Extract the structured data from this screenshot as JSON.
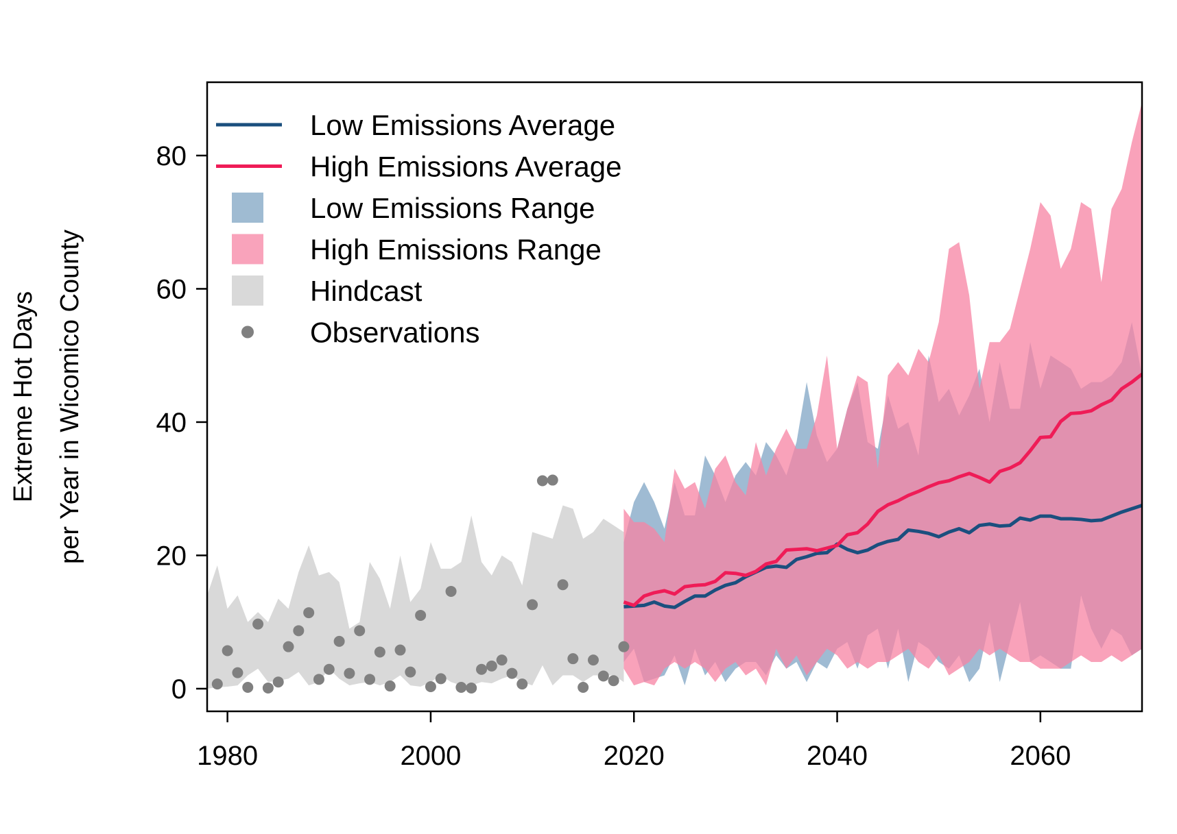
{
  "chart_data": {
    "type": "area",
    "title": "",
    "xlabel": "",
    "ylabel_lines": [
      "Extreme Hot Days",
      "per Year in Wicomico County"
    ],
    "xlim": [
      1978,
      2070
    ],
    "ylim": [
      -3.4,
      91
    ],
    "xticks": [
      1980,
      2000,
      2020,
      2040,
      2060
    ],
    "yticks": [
      0,
      20,
      40,
      60,
      80
    ],
    "grid": false,
    "legend_position": "top-left",
    "colors": {
      "low_line": "#1b4f7e",
      "high_line": "#ef1c57",
      "low_range": "#7fa4c4",
      "high_range": "#f783a3",
      "low_range_opacity": 0.75,
      "high_range_opacity": 0.75,
      "hindcast": "#d9d9d9",
      "observations": "#808080"
    },
    "legend": [
      {
        "label": "Low Emissions Average",
        "kind": "line",
        "color": "#1b4f7e"
      },
      {
        "label": "High Emissions Average",
        "kind": "line",
        "color": "#ef1c57"
      },
      {
        "label": "Low Emissions Range",
        "kind": "fill",
        "color": "#9fbbd2"
      },
      {
        "label": "High Emissions Range",
        "kind": "fill",
        "color": "#f9a3bb"
      },
      {
        "label": "Hindcast",
        "kind": "fill",
        "color": "#d9d9d9"
      },
      {
        "label": "Observations",
        "kind": "point",
        "color": "#808080"
      }
    ],
    "hindcast": {
      "years": [
        1978,
        1979,
        1980,
        1981,
        1982,
        1983,
        1984,
        1985,
        1986,
        1987,
        1988,
        1989,
        1990,
        1991,
        1992,
        1993,
        1994,
        1995,
        1996,
        1997,
        1998,
        1999,
        2000,
        2001,
        2002,
        2003,
        2004,
        2005,
        2006,
        2007,
        2008,
        2009,
        2010,
        2011,
        2012,
        2013,
        2014,
        2015,
        2016,
        2017,
        2018,
        2019
      ],
      "upper": [
        14,
        18.5,
        12,
        14,
        10,
        11.5,
        10,
        13.5,
        12,
        17.5,
        21.5,
        17,
        17.5,
        16,
        9,
        10,
        19,
        16.5,
        12,
        20,
        13,
        15,
        22,
        18,
        18,
        19,
        26,
        19,
        17,
        20,
        19,
        15.5,
        23.5,
        23,
        22.5,
        27.5,
        27,
        22.5,
        23.5,
        25.5,
        24.5,
        23.5
      ],
      "lower": [
        0,
        0.2,
        0.3,
        0.5,
        2,
        3,
        1,
        1.2,
        1.5,
        2.5,
        0.5,
        1,
        3,
        1.5,
        0.5,
        0.8,
        1,
        0.5,
        1,
        2,
        0.5,
        0.3,
        1,
        2,
        1,
        0.5,
        0.5,
        1,
        0.8,
        1.5,
        2,
        1,
        0.5,
        3.5,
        0.5,
        2,
        2,
        1,
        2,
        2,
        2,
        1
      ]
    },
    "observations": {
      "years": [
        1979,
        1980,
        1981,
        1982,
        1983,
        1984,
        1985,
        1986,
        1987,
        1988,
        1989,
        1990,
        1991,
        1992,
        1993,
        1994,
        1995,
        1996,
        1997,
        1998,
        1999,
        2000,
        2001,
        2002,
        2003,
        2004,
        2005,
        2006,
        2007,
        2008,
        2009,
        2010,
        2011,
        2012,
        2013,
        2014,
        2015,
        2016,
        2017,
        2018,
        2019
      ],
      "values": [
        0.7,
        5.7,
        2.4,
        0.2,
        9.7,
        0.1,
        1,
        6.3,
        8.7,
        11.4,
        1.4,
        2.9,
        7.1,
        2.3,
        8.7,
        1.4,
        5.5,
        0.4,
        5.8,
        2.5,
        11,
        0.3,
        1.5,
        14.6,
        0.2,
        0.1,
        2.9,
        3.4,
        4.3,
        2.3,
        0.7,
        12.6,
        31.2,
        31.3,
        15.6,
        4.5,
        0.2,
        4.3,
        1.9,
        1.2,
        6.3
      ]
    },
    "projections": {
      "years": [
        2019,
        2020,
        2021,
        2022,
        2023,
        2024,
        2025,
        2026,
        2027,
        2028,
        2029,
        2030,
        2031,
        2032,
        2033,
        2034,
        2035,
        2036,
        2037,
        2038,
        2039,
        2040,
        2041,
        2042,
        2043,
        2044,
        2045,
        2046,
        2047,
        2048,
        2049,
        2050,
        2051,
        2052,
        2053,
        2054,
        2055,
        2056,
        2057,
        2058,
        2059,
        2060,
        2061,
        2062,
        2063,
        2064,
        2065,
        2066,
        2067,
        2068,
        2069,
        2070
      ],
      "low_mean": [
        12.3,
        12.4,
        12.5,
        13,
        12.4,
        12.2,
        13.1,
        13.9,
        13.9,
        14.8,
        15.5,
        15.9,
        16.8,
        17.5,
        18.2,
        18.4,
        18.2,
        19.4,
        19.8,
        20.3,
        20.4,
        21.7,
        20.9,
        20.4,
        20.8,
        21.6,
        22.1,
        22.4,
        23.8,
        23.6,
        23.3,
        22.8,
        23.5,
        24,
        23.4,
        24.5,
        24.7,
        24.4,
        24.5,
        25.6,
        25.3,
        25.9,
        25.9,
        25.5,
        25.5,
        25.4,
        25.2,
        25.3,
        25.9,
        26.5,
        27,
        27.5
      ],
      "high_mean": [
        13,
        12.5,
        13.9,
        14.4,
        14.7,
        14.2,
        15.3,
        15.5,
        15.6,
        16.1,
        17.4,
        17.3,
        17,
        17.6,
        18.7,
        19.1,
        20.8,
        20.9,
        21,
        20.7,
        21.1,
        21.5,
        23.1,
        23.4,
        24.7,
        26.6,
        27.6,
        28.2,
        29,
        29.6,
        30.3,
        30.9,
        31.2,
        31.8,
        32.3,
        31.7,
        31,
        32.6,
        33.1,
        33.9,
        35.7,
        37.7,
        37.8,
        40.1,
        41.3,
        41.4,
        41.7,
        42.6,
        43.3,
        45,
        46,
        47.2
      ],
      "low_upper": [
        22,
        28,
        31,
        28,
        24,
        31,
        26,
        26,
        35,
        32,
        28,
        32,
        34,
        32,
        37,
        35,
        32,
        37,
        46,
        38,
        34,
        36,
        42,
        46,
        37,
        36,
        44,
        39,
        40,
        35,
        50,
        43,
        45,
        41,
        44,
        48,
        40,
        49,
        42,
        42,
        52,
        45,
        50,
        49,
        48,
        45,
        46,
        46,
        47,
        49,
        55,
        47
      ],
      "low_lower": [
        4,
        6,
        1,
        1.5,
        2,
        5,
        0.5,
        6,
        2,
        4,
        1,
        3,
        4,
        4,
        2,
        5,
        3,
        4,
        1,
        4,
        3,
        6,
        7,
        3,
        8,
        9,
        3,
        9,
        1,
        7,
        6,
        4,
        3,
        5,
        1,
        3,
        10,
        1,
        7,
        13,
        4,
        5,
        4,
        3,
        3,
        14,
        9,
        6,
        9,
        8,
        5,
        6
      ],
      "high_upper": [
        27,
        25,
        25,
        24,
        22,
        33,
        30,
        31,
        27,
        33,
        35,
        31,
        29,
        37,
        32,
        36,
        39,
        36,
        36,
        41,
        50,
        36,
        42,
        47,
        46,
        33,
        47,
        49,
        47,
        51,
        49,
        55,
        66,
        67,
        59,
        45,
        52,
        52,
        54,
        60,
        66,
        73,
        71,
        63,
        66,
        73,
        72,
        61,
        72,
        75,
        82,
        88
      ],
      "high_lower": [
        3,
        0.5,
        1,
        0.5,
        3,
        4,
        3,
        4,
        3,
        1,
        3,
        4,
        2,
        3,
        0.5,
        6,
        3,
        5,
        2,
        4,
        6,
        5,
        3,
        4,
        3,
        4,
        4,
        5,
        6,
        4,
        3,
        5,
        2,
        3,
        4,
        6,
        5,
        6,
        5,
        4,
        4,
        3,
        3,
        3,
        4,
        5,
        4,
        4,
        5,
        4,
        5,
        6
      ]
    }
  }
}
